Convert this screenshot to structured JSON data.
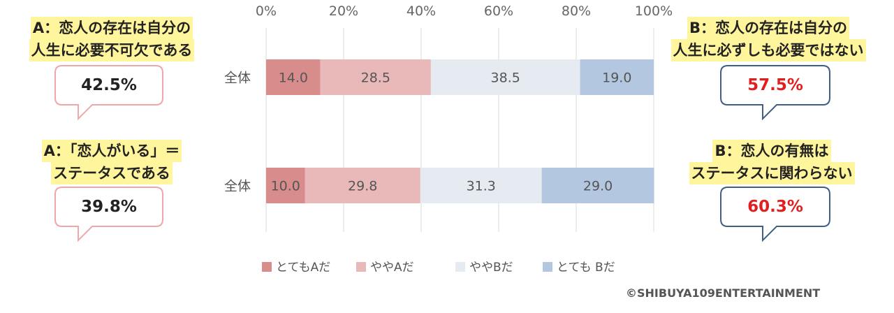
{
  "left_panels": [
    {
      "lines": [
        "A：恋人の存在は自分の",
        "人生に必要不可欠である"
      ],
      "value": "42.5%"
    },
    {
      "lines": [
        "A：「恋人がいる」＝",
        "ステータスである"
      ],
      "value": "39.8%"
    }
  ],
  "right_panels": [
    {
      "lines": [
        "B：恋人の存在は自分の",
        "人生に必ずしも必要ではない"
      ],
      "value": "57.5%"
    },
    {
      "lines": [
        "B：恋人の有無は",
        "ステータスに関わらない"
      ],
      "value": "60.3%"
    }
  ],
  "colors": {
    "left_bubble_border": "#f0a7a7",
    "right_bubble_border": "#3f5f86",
    "right_value_text": "#e02020",
    "label_highlight": "#fff59d"
  },
  "chart_data": {
    "type": "bar",
    "orientation": "horizontal",
    "stacked": true,
    "categories": [
      "全体",
      "全体"
    ],
    "x_ticks": [
      "0%",
      "20%",
      "40%",
      "60%",
      "80%",
      "100%"
    ],
    "xlim": [
      0,
      100
    ],
    "grid": true,
    "legend_position": "bottom",
    "series": [
      {
        "name": "とてもAだ",
        "values": [
          14.0,
          10.0
        ],
        "labels": [
          "14.0",
          "10.0"
        ],
        "color": "#d98c8c"
      },
      {
        "name": "ややAだ",
        "values": [
          28.5,
          29.8
        ],
        "labels": [
          "28.5",
          "29.8"
        ],
        "color": "#e9b8b8"
      },
      {
        "name": "ややBだ",
        "values": [
          38.5,
          31.3
        ],
        "labels": [
          "38.5",
          "31.3"
        ],
        "color": "#e6ebf2"
      },
      {
        "name": "とても Bだ",
        "values": [
          19.0,
          29.0
        ],
        "labels": [
          "19.0",
          "29.0"
        ],
        "color": "#b3c8e0"
      }
    ]
  },
  "footer": {
    "copyright": "©SHIBUYA109ENTERTAINMENT"
  }
}
